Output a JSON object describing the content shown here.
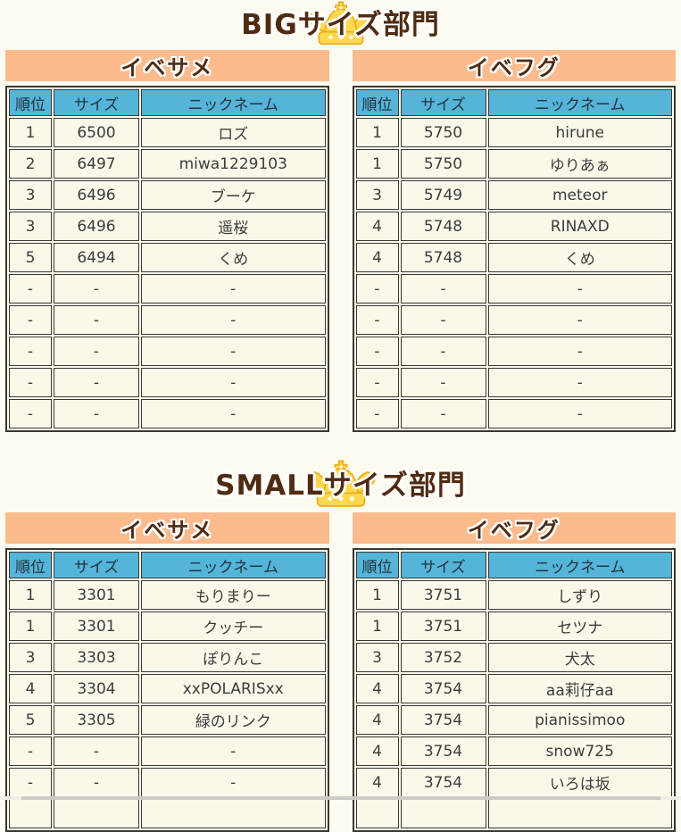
{
  "colors": {
    "page_background": "#FDFBEF",
    "accent_orange": "#FBBB8D",
    "header_blue": "#54B4D9",
    "title_brown": "#4F2B11",
    "border_dark": "#3A382F",
    "cell_background": "#FBF8E9",
    "crown_gold": "#FFD84E"
  },
  "columns": [
    "順位",
    "サイズ",
    "ニックネーム"
  ],
  "sections": [
    {
      "title": "BIGサイズ部門",
      "tables": [
        {
          "label": "イベサメ",
          "rows": [
            [
              "1",
              "6500",
              "ロズ"
            ],
            [
              "2",
              "6497",
              "miwa1229103"
            ],
            [
              "3",
              "6496",
              "ブーケ"
            ],
            [
              "3",
              "6496",
              "遥桜"
            ],
            [
              "5",
              "6494",
              "くめ"
            ],
            [
              "-",
              "-",
              "-"
            ],
            [
              "-",
              "-",
              "-"
            ],
            [
              "-",
              "-",
              "-"
            ],
            [
              "-",
              "-",
              "-"
            ],
            [
              "-",
              "-",
              "-"
            ]
          ]
        },
        {
          "label": "イベフグ",
          "rows": [
            [
              "1",
              "5750",
              "hirune"
            ],
            [
              "1",
              "5750",
              "ゆりあぁ"
            ],
            [
              "3",
              "5749",
              "meteor"
            ],
            [
              "4",
              "5748",
              "RINAXD"
            ],
            [
              "4",
              "5748",
              "くめ"
            ],
            [
              "-",
              "-",
              "-"
            ],
            [
              "-",
              "-",
              "-"
            ],
            [
              "-",
              "-",
              "-"
            ],
            [
              "-",
              "-",
              "-"
            ],
            [
              "-",
              "-",
              "-"
            ]
          ]
        }
      ]
    },
    {
      "title": "SMALLサイズ部門",
      "tables": [
        {
          "label": "イベサメ",
          "rows": [
            [
              "1",
              "3301",
              "もりまりー"
            ],
            [
              "1",
              "3301",
              "クッチー"
            ],
            [
              "3",
              "3303",
              "ぽりんこ"
            ],
            [
              "4",
              "3304",
              "xxPOLARISxx"
            ],
            [
              "5",
              "3305",
              "緑のリンク"
            ],
            [
              "-",
              "-",
              "-"
            ],
            [
              "-",
              "-",
              "-"
            ],
            [
              "",
              "",
              ""
            ]
          ]
        },
        {
          "label": "イベフグ",
          "rows": [
            [
              "1",
              "3751",
              "しずり"
            ],
            [
              "1",
              "3751",
              "セツナ"
            ],
            [
              "3",
              "3752",
              "犬太"
            ],
            [
              "4",
              "3754",
              "aa莉仔aa"
            ],
            [
              "4",
              "3754",
              "pianissimoo"
            ],
            [
              "4",
              "3754",
              "snow725"
            ],
            [
              "4",
              "3754",
              "いろは坂"
            ],
            [
              "",
              "",
              ""
            ]
          ]
        }
      ]
    }
  ]
}
